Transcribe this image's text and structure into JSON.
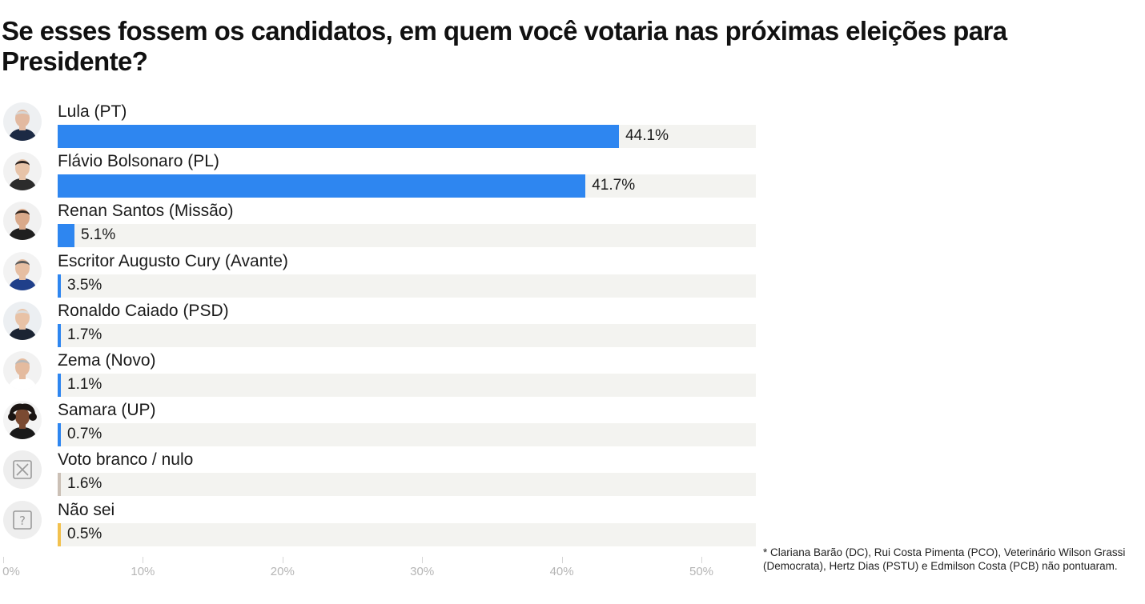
{
  "header": {
    "title": "Se esses fossem os candidatos, em quem você votaria nas próximas eleições para Presidente?"
  },
  "colors": {
    "primary": "#2e86f0",
    "blank": "#cbc0b6",
    "unsure": "#f2c14e",
    "track": "#f3f3f0"
  },
  "chart_data": {
    "type": "bar",
    "orientation": "horizontal",
    "categories": [
      "Lula (PT)",
      "Flávio Bolsonaro (PL)",
      "Renan Santos (Missão)",
      "Escritor Augusto Cury (Avante)",
      "Ronaldo Caiado (PSD)",
      "Zema (Novo)",
      "Samara (UP)",
      "Voto branco / nulo",
      "Não sei"
    ],
    "values": [
      44.1,
      41.7,
      5.1,
      3.5,
      1.7,
      1.1,
      0.7,
      1.6,
      0.5
    ],
    "value_labels": [
      "44.1%",
      "41.7%",
      "5.1%",
      "3.5%",
      "1.7%",
      "1.1%",
      "0.7%",
      "1.6%",
      "0.5%"
    ],
    "bar_colors": [
      "#2e86f0",
      "#2e86f0",
      "#2e86f0",
      "#2e86f0",
      "#2e86f0",
      "#2e86f0",
      "#2e86f0",
      "#cbc0b6",
      "#f2c14e"
    ],
    "icons": [
      "candidate-photo",
      "candidate-photo",
      "candidate-photo",
      "candidate-photo",
      "candidate-photo",
      "candidate-photo",
      "candidate-photo",
      "x-box-icon",
      "question-box-icon"
    ],
    "xlim": [
      0,
      50
    ],
    "xticks": [
      0,
      10,
      20,
      30,
      40,
      50
    ],
    "xtick_labels": [
      "0%",
      "10%",
      "20%",
      "30%",
      "40%",
      "50%"
    ],
    "grid": false,
    "legend": "none"
  },
  "footnote": "* Clariana Barão (DC), Rui Costa Pimenta (PCO), Veterinário Wilson Grassi (Democrata), Hertz Dias (PSTU) e Edmilson Costa (PCB) não pontuaram."
}
